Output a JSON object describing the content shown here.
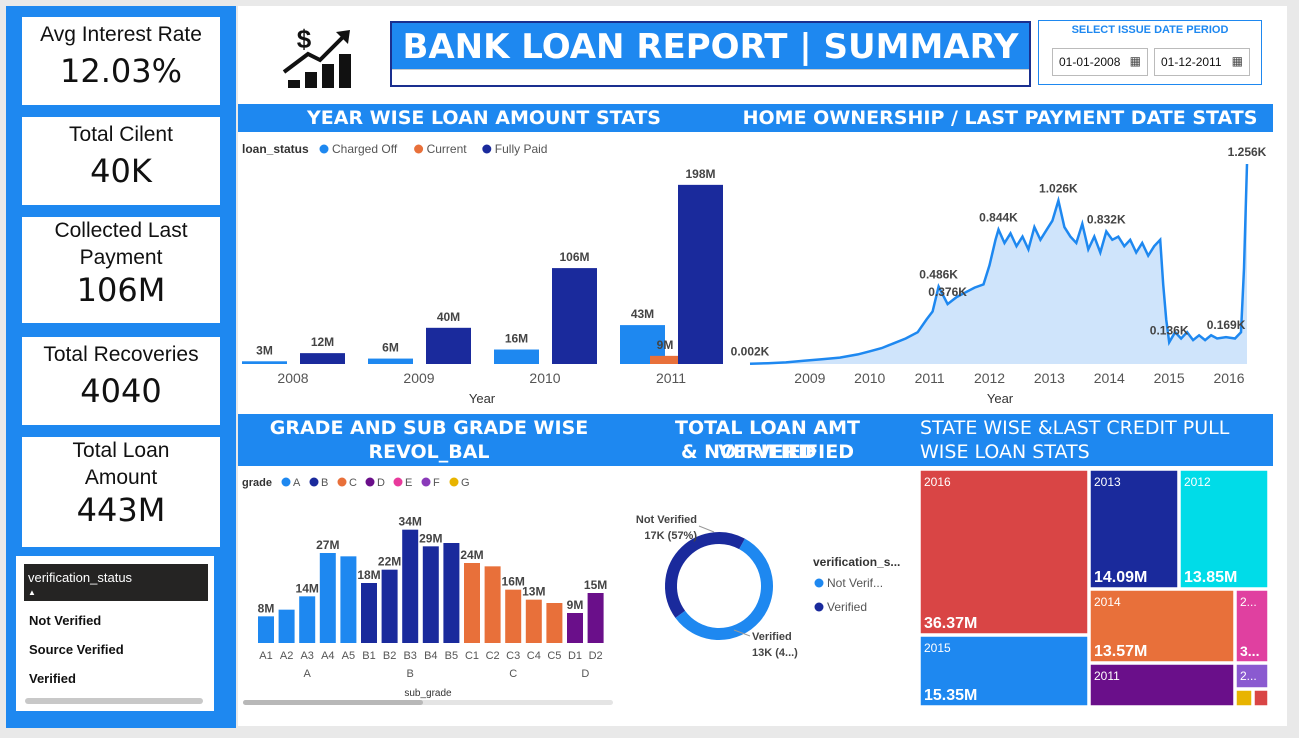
{
  "kpis": [
    {
      "label": "Avg Interest Rate",
      "value": "12.03%"
    },
    {
      "label": "Total Cilent",
      "value": "40K"
    },
    {
      "label": "Collected Last Payment",
      "value": "106M"
    },
    {
      "label": "Total Recoveries",
      "value": "4040"
    },
    {
      "label": "Total Loan Amount",
      "value": "443M"
    }
  ],
  "slicer": {
    "header": "verification_status",
    "items": [
      "Not Verified",
      "Source Verified",
      "Verified"
    ]
  },
  "header": {
    "title": "BANK LOAN REPORT | SUMMARY"
  },
  "date_filter": {
    "heading": "SELECT ISSUE DATE PERIOD",
    "start": "01-01-2008",
    "end": "01-12-2011"
  },
  "sections": {
    "year_wise": "YEAR WISE LOAN AMOUNT STATS",
    "home_ownership": "HOME OWNERSHIP / LAST PAYMENT DATE STATS",
    "grade_line1": "GRADE AND SUB GRADE WISE",
    "grade_line2": "REVOL_BAL",
    "verified_line1": "TOTAL LOAN AMT VERIFIED",
    "verified_line2": "& NOT VERIFIED",
    "state_line1": "STATE WISE &LAST CREDIT PULL",
    "state_line2": "WISE LOAN STATS"
  },
  "colors": {
    "accent": "#1e88f0",
    "charged_off": "#1e88f0",
    "current": "#e8703a",
    "fully_paid": "#1a2a9c"
  },
  "chart_data": [
    {
      "type": "bar",
      "legend_title": "loan_status",
      "xlabel": "Year",
      "categories": [
        "2008",
        "2009",
        "2010",
        "2011"
      ],
      "series": [
        {
          "name": "Charged Off",
          "color": "#1e88f0",
          "values": [
            3,
            6,
            16,
            43
          ],
          "labels": [
            "3M",
            "6M",
            "16M",
            "43M"
          ]
        },
        {
          "name": "Current",
          "color": "#e8703a",
          "values": [
            0,
            0,
            0,
            9
          ],
          "labels": [
            "",
            "",
            "",
            "9M"
          ]
        },
        {
          "name": "Fully Paid",
          "color": "#1a2a9c",
          "values": [
            12,
            40,
            106,
            198
          ],
          "labels": [
            "12M",
            "40M",
            "106M",
            "198M"
          ]
        }
      ]
    },
    {
      "type": "area",
      "xlabel": "Year",
      "x_ticks": [
        "2009",
        "2010",
        "2011",
        "2012",
        "2013",
        "2014",
        "2015",
        "2016"
      ],
      "annotations": [
        {
          "x": 2008.0,
          "y": 0.002,
          "label": "0.002K"
        },
        {
          "x": 2011.15,
          "y": 0.486,
          "label": "0.486K"
        },
        {
          "x": 2011.3,
          "y": 0.376,
          "label": "0.376K"
        },
        {
          "x": 2012.15,
          "y": 0.844,
          "label": "0.844K"
        },
        {
          "x": 2013.15,
          "y": 1.026,
          "label": "1.026K"
        },
        {
          "x": 2013.95,
          "y": 0.832,
          "label": "0.832K"
        },
        {
          "x": 2015.0,
          "y": 0.136,
          "label": "0.136K"
        },
        {
          "x": 2015.95,
          "y": 0.169,
          "label": "0.169K"
        },
        {
          "x": 2016.3,
          "y": 1.256,
          "label": "1.256K"
        }
      ],
      "points": [
        [
          2008.0,
          0.002
        ],
        [
          2008.3,
          0.005
        ],
        [
          2008.6,
          0.01
        ],
        [
          2008.9,
          0.02
        ],
        [
          2009.2,
          0.03
        ],
        [
          2009.5,
          0.04
        ],
        [
          2009.8,
          0.06
        ],
        [
          2010.0,
          0.08
        ],
        [
          2010.2,
          0.1
        ],
        [
          2010.4,
          0.13
        ],
        [
          2010.6,
          0.16
        ],
        [
          2010.8,
          0.2
        ],
        [
          2010.95,
          0.28
        ],
        [
          2011.05,
          0.33
        ],
        [
          2011.15,
          0.486
        ],
        [
          2011.3,
          0.376
        ],
        [
          2011.45,
          0.42
        ],
        [
          2011.6,
          0.45
        ],
        [
          2011.75,
          0.48
        ],
        [
          2011.9,
          0.5
        ],
        [
          2012.0,
          0.62
        ],
        [
          2012.1,
          0.78
        ],
        [
          2012.15,
          0.844
        ],
        [
          2012.25,
          0.76
        ],
        [
          2012.35,
          0.82
        ],
        [
          2012.45,
          0.74
        ],
        [
          2012.55,
          0.8
        ],
        [
          2012.65,
          0.72
        ],
        [
          2012.75,
          0.86
        ],
        [
          2012.85,
          0.78
        ],
        [
          2012.95,
          0.84
        ],
        [
          2013.05,
          0.9
        ],
        [
          2013.15,
          1.026
        ],
        [
          2013.25,
          0.86
        ],
        [
          2013.35,
          0.8
        ],
        [
          2013.45,
          0.76
        ],
        [
          2013.55,
          0.88
        ],
        [
          2013.65,
          0.72
        ],
        [
          2013.75,
          0.8
        ],
        [
          2013.85,
          0.7
        ],
        [
          2013.95,
          0.832
        ],
        [
          2014.05,
          0.78
        ],
        [
          2014.15,
          0.8
        ],
        [
          2014.25,
          0.74
        ],
        [
          2014.35,
          0.78
        ],
        [
          2014.45,
          0.7
        ],
        [
          2014.55,
          0.76
        ],
        [
          2014.65,
          0.68
        ],
        [
          2014.75,
          0.74
        ],
        [
          2014.85,
          0.78
        ],
        [
          2014.9,
          0.5
        ],
        [
          2014.95,
          0.28
        ],
        [
          2015.0,
          0.136
        ],
        [
          2015.1,
          0.2
        ],
        [
          2015.2,
          0.16
        ],
        [
          2015.3,
          0.2
        ],
        [
          2015.4,
          0.15
        ],
        [
          2015.5,
          0.18
        ],
        [
          2015.6,
          0.15
        ],
        [
          2015.7,
          0.18
        ],
        [
          2015.8,
          0.16
        ],
        [
          2015.95,
          0.169
        ],
        [
          2016.1,
          0.16
        ],
        [
          2016.2,
          0.2
        ],
        [
          2016.25,
          0.6
        ],
        [
          2016.3,
          1.256
        ]
      ]
    },
    {
      "type": "bar",
      "legend_title": "grade",
      "xlabel": "sub_grade",
      "grades": [
        {
          "name": "A",
          "color": "#1e88f0",
          "subs": [
            "A1",
            "A2",
            "A3",
            "A4",
            "A5"
          ],
          "values": [
            8,
            10,
            14,
            27,
            26
          ],
          "labels": [
            "8M",
            "",
            "14M",
            "27M",
            ""
          ]
        },
        {
          "name": "B",
          "color": "#1a2a9c",
          "subs": [
            "B1",
            "B2",
            "B3",
            "B4",
            "B5"
          ],
          "values": [
            18,
            22,
            34,
            29,
            30
          ],
          "labels": [
            "18M",
            "22M",
            "34M",
            "29M",
            ""
          ]
        },
        {
          "name": "C",
          "color": "#e8703a",
          "subs": [
            "C1",
            "C2",
            "C3",
            "C4",
            "C5"
          ],
          "values": [
            24,
            23,
            16,
            13,
            12
          ],
          "labels": [
            "24M",
            "",
            "16M",
            "13M",
            ""
          ]
        },
        {
          "name": "D",
          "color": "#6a0f8a",
          "subs": [
            "D1",
            "D2"
          ],
          "values": [
            9,
            15
          ],
          "labels": [
            "9M",
            "15M"
          ]
        },
        {
          "name": "E",
          "color": "#e83a9c",
          "subs": [],
          "values": [],
          "labels": []
        },
        {
          "name": "F",
          "color": "#8a3ab9",
          "subs": [],
          "values": [],
          "labels": []
        },
        {
          "name": "G",
          "color": "#e8b400",
          "subs": [],
          "values": [],
          "labels": []
        }
      ]
    },
    {
      "type": "pie",
      "legend_title": "verification_s...",
      "slices": [
        {
          "name": "Not Verified",
          "legend": "Not Verif...",
          "value": 17,
          "pct": 57,
          "label1": "Not Verified",
          "label2": "17K (57%)",
          "color": "#1e88f0"
        },
        {
          "name": "Verified",
          "legend": "Verified",
          "value": 13,
          "pct": 43,
          "label1": "Verified",
          "label2": "13K (4...)",
          "color": "#1a2a9c"
        }
      ]
    },
    {
      "type": "heatmap",
      "tiles": [
        {
          "year": "2016",
          "value": "36.37M",
          "color": "#d94545"
        },
        {
          "year": "2015",
          "value": "15.35M",
          "color": "#1e88f0"
        },
        {
          "year": "2013",
          "value": "14.09M",
          "color": "#1a2a9c"
        },
        {
          "year": "2012",
          "value": "13.85M",
          "color": "#00dce8"
        },
        {
          "year": "2014",
          "value": "13.57M",
          "color": "#e8703a"
        },
        {
          "year": "2011",
          "value": "",
          "color": "#6a0f8a"
        },
        {
          "year": "2...",
          "value": "3...",
          "color": "#e040a0"
        },
        {
          "year": "2...",
          "value": "",
          "color": "#8a5ad0"
        },
        {
          "year": "",
          "value": "",
          "color": "#e8b400"
        },
        {
          "year": "",
          "value": "",
          "color": "#d94545"
        }
      ]
    }
  ]
}
